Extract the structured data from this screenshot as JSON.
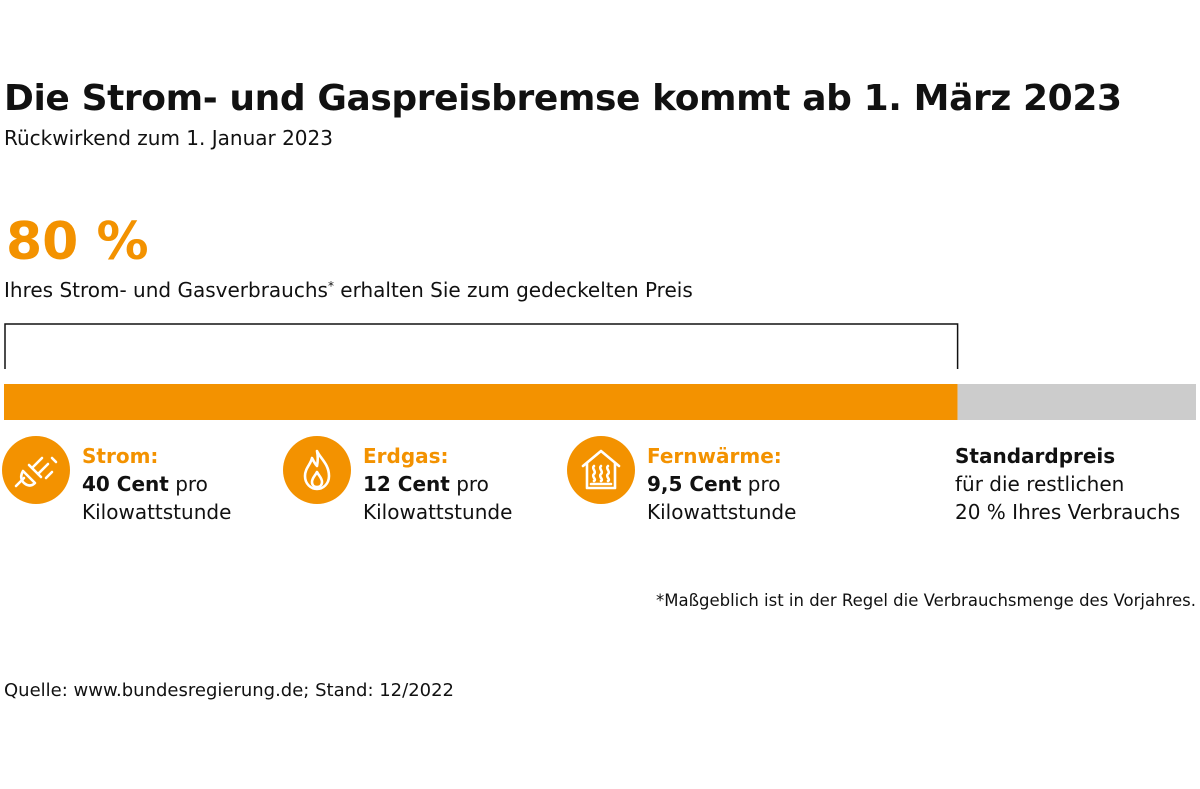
{
  "title": "Die Strom- und Gaspreisbremse kommt ab 1. März 2023",
  "subtitle": "Rückwirkend zum 1. Januar 2023",
  "highlight": {
    "value": "80 %",
    "text": "Ihres Strom- und Gasverbrauchs",
    "asterisk": "*",
    "text_after": " erhalten Sie zum gedeckelten Preis"
  },
  "chart_data": {
    "type": "bar",
    "orientation": "horizontal-stacked",
    "categories": [
      "Gedeckelter Preis",
      "Standardpreis"
    ],
    "values": [
      80,
      20
    ],
    "unit": "%",
    "colors": [
      "#f39200",
      "#cccccc"
    ],
    "title": "",
    "xlabel": "",
    "ylabel": ""
  },
  "items": [
    {
      "icon": "plug-icon",
      "label": "Strom:",
      "price": "40 Cent",
      "unit_line1": " pro",
      "unit_line2": "Kilowattstunde"
    },
    {
      "icon": "flame-icon",
      "label": "Erdgas:",
      "price": "12 Cent",
      "unit_line1": " pro",
      "unit_line2": "Kilowattstunde"
    },
    {
      "icon": "house-heating-icon",
      "label": "Fernwärme:",
      "price": "9,5 Cent",
      "unit_line1": " pro",
      "unit_line2": "Kilowattstunde"
    }
  ],
  "standard": {
    "title": "Standardpreis",
    "line1": "für die restlichen",
    "line2": "20 % Ihres Verbrauchs"
  },
  "footnote": "*Maßgeblich ist in der Regel die Verbrauchsmenge des Vorjahres.",
  "source": "Quelle: www.bundesregierung.de; Stand: 12/2022",
  "colors": {
    "accent": "#f39200",
    "rest": "#cccccc",
    "text": "#111111"
  }
}
